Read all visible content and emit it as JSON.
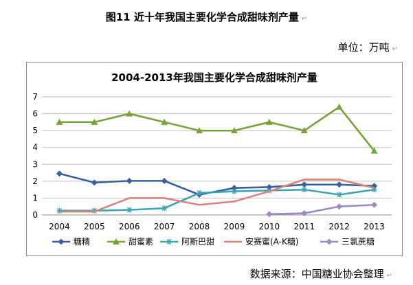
{
  "figure": {
    "title": "图11  近十年我国主要化学合成甜味剂产量",
    "para_mark": "↵",
    "unit": "单位：万吨",
    "source": "数据来源：中国糖业协会整理"
  },
  "chart_data": {
    "type": "line",
    "title": "2004-2013年我国主要化学合成甜味剂产量",
    "xlabel": "",
    "ylabel": "",
    "categories": [
      "2004",
      "2005",
      "2006",
      "2007",
      "2008",
      "2009",
      "2010",
      "2011",
      "2012",
      "2013"
    ],
    "ylim": [
      0,
      7
    ],
    "yticks": [
      "0",
      "1",
      "2",
      "3",
      "4",
      "5",
      "6",
      "7"
    ],
    "grid": "horizontal",
    "legend_position": "bottom",
    "series": [
      {
        "name": "糖精",
        "color": "#3a5f9f",
        "marker": "diamond",
        "values": [
          2.45,
          1.92,
          2.02,
          2.02,
          1.2,
          1.6,
          1.65,
          1.8,
          1.8,
          1.72
        ]
      },
      {
        "name": "甜蜜素",
        "color": "#78a33a",
        "marker": "triangle",
        "values": [
          5.5,
          5.5,
          6.0,
          5.5,
          5.0,
          5.0,
          5.5,
          5.0,
          6.4,
          3.8
        ]
      },
      {
        "name": "阿斯巴甜",
        "color": "#3aa4b4",
        "marker": "asterisk",
        "values": [
          0.25,
          0.25,
          0.3,
          0.4,
          1.3,
          1.4,
          1.45,
          1.5,
          1.2,
          1.5
        ]
      },
      {
        "name": "安赛蜜(A-K糖)",
        "color": "#d9837b",
        "marker": "none",
        "values": [
          0.2,
          0.2,
          1.0,
          1.0,
          0.6,
          0.8,
          1.4,
          2.1,
          2.1,
          1.6
        ]
      },
      {
        "name": "三氯蔗糖",
        "color": "#9f89c4",
        "marker": "diamond",
        "values": [
          null,
          null,
          null,
          null,
          null,
          null,
          0.05,
          0.1,
          0.5,
          0.6
        ]
      }
    ]
  }
}
